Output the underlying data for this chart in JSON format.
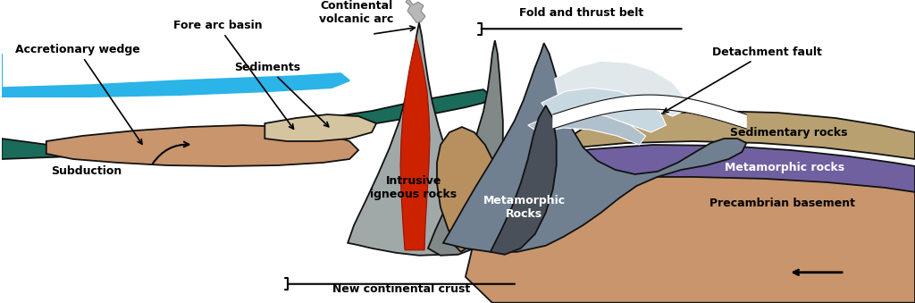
{
  "figsize": [
    10.24,
    3.39
  ],
  "dpi": 100,
  "bg_color": "#ffffff",
  "colors": {
    "ocean": "#2ab4e8",
    "subduction_plate": "#1a6b5a",
    "accretionary_wedge": "#c8956c",
    "sediments": "#d4c4a0",
    "volcanic_grey_light": "#a0a8a8",
    "volcanic_grey": "#808888",
    "volcanic_grey_dark": "#606870",
    "magma": "#cc2200",
    "metamorphic_dark": "#4a505a",
    "fold_grey": "#708090",
    "fold_white1": "#e0e8ec",
    "fold_white2": "#c8d8e0",
    "fold_white3": "#b0c0cc",
    "tan_right": "#b89060",
    "sedimentary_rock": "#b8a070",
    "metamorphic_purple": "#7060a0",
    "precambrian": "#c8956c",
    "outline": "#111111"
  },
  "labels": {
    "accretionary_wedge": "Accretionary wedge",
    "fore_arc_basin": "Fore arc basin",
    "sediments": "Sediments",
    "continental_volcanic_arc": "Continental\nvolcanic arc",
    "fold_and_thrust_belt": "Fold and thrust belt",
    "detachment_fault": "Detachment fault",
    "subduction": "Subduction",
    "intrusive_igneous_rocks": "Intrusive\nigneous rocks",
    "metamorphic_rocks_center": "Metamorphic\nRocks",
    "new_continental_crust": "New continental crust",
    "sedimentary_rocks": "Sedimentary rocks",
    "metamorphic_rocks_right": "Metamorphic rocks",
    "precambrian_basement": "Precambrian basement"
  }
}
